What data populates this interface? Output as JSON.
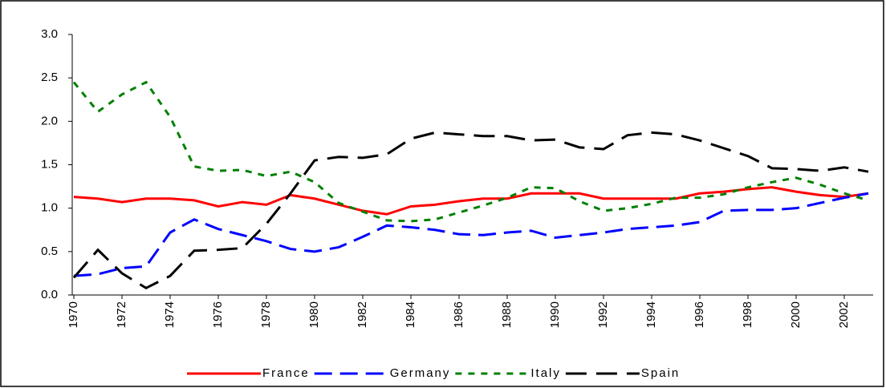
{
  "chart_data": {
    "type": "line",
    "x": [
      1970,
      1971,
      1972,
      1973,
      1974,
      1975,
      1976,
      1977,
      1978,
      1979,
      1980,
      1981,
      1982,
      1983,
      1984,
      1985,
      1986,
      1987,
      1988,
      1989,
      1990,
      1991,
      1992,
      1993,
      1994,
      1995,
      1996,
      1997,
      1998,
      1999,
      2000,
      2001,
      2002,
      2003
    ],
    "xlim": [
      1970,
      2003
    ],
    "xticks": [
      1970,
      1972,
      1974,
      1976,
      1978,
      1980,
      1982,
      1984,
      1986,
      1988,
      1990,
      1992,
      1994,
      1996,
      1998,
      2000,
      2002
    ],
    "ylim": [
      0,
      3
    ],
    "yticks": [
      {
        "value": 0,
        "label": "0.0"
      },
      {
        "value": 0.5,
        "label": "0.5"
      },
      {
        "value": 1,
        "label": "1.0"
      },
      {
        "value": 1.5,
        "label": "1.5"
      },
      {
        "value": 2,
        "label": "2.0"
      },
      {
        "value": 2.5,
        "label": "2.5"
      },
      {
        "value": 3,
        "label": "3.0"
      }
    ],
    "series": [
      {
        "name": "France",
        "color": "#ff0000",
        "dash": "solid",
        "values": [
          1.13,
          1.11,
          1.07,
          1.11,
          1.11,
          1.09,
          1.02,
          1.07,
          1.04,
          1.15,
          1.11,
          1.04,
          0.97,
          0.93,
          1.02,
          1.04,
          1.08,
          1.11,
          1.11,
          1.17,
          1.17,
          1.17,
          1.11,
          1.11,
          1.11,
          1.11,
          1.17,
          1.19,
          1.22,
          1.24,
          1.19,
          1.15,
          1.13,
          1.17
        ]
      },
      {
        "name": "Germany",
        "color": "#0000ff",
        "dash": "long",
        "values": [
          0.22,
          0.24,
          0.31,
          0.33,
          0.72,
          0.87,
          0.76,
          0.69,
          0.62,
          0.53,
          0.5,
          0.55,
          0.67,
          0.8,
          0.78,
          0.75,
          0.7,
          0.69,
          0.72,
          0.74,
          0.66,
          0.69,
          0.72,
          0.76,
          0.78,
          0.8,
          0.84,
          0.97,
          0.98,
          0.98,
          1.0,
          1.06,
          1.12,
          1.17
        ]
      },
      {
        "name": "Italy",
        "color": "#008000",
        "dash": "short",
        "values": [
          2.45,
          2.11,
          2.31,
          2.45,
          2.05,
          1.48,
          1.43,
          1.44,
          1.37,
          1.42,
          1.3,
          1.06,
          0.96,
          0.86,
          0.85,
          0.87,
          0.95,
          1.03,
          1.12,
          1.24,
          1.23,
          1.08,
          0.97,
          1.0,
          1.05,
          1.12,
          1.12,
          1.16,
          1.24,
          1.3,
          1.35,
          1.27,
          1.17,
          1.09
        ]
      },
      {
        "name": "Spain",
        "color": "#000000",
        "dash": "longdash",
        "values": [
          0.2,
          0.52,
          0.25,
          0.08,
          0.22,
          0.51,
          0.52,
          0.54,
          0.82,
          1.17,
          1.55,
          1.59,
          1.58,
          1.62,
          1.8,
          1.87,
          1.85,
          1.83,
          1.83,
          1.78,
          1.79,
          1.7,
          1.68,
          1.84,
          1.87,
          1.85,
          1.78,
          1.69,
          1.6,
          1.46,
          1.45,
          1.43,
          1.47,
          1.42
        ]
      }
    ]
  }
}
